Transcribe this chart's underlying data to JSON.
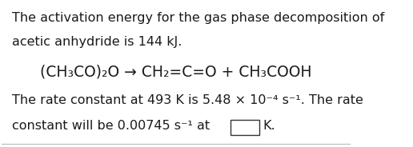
{
  "background_color": "#ffffff",
  "line1": "The activation energy for the gas phase decomposition of",
  "line2": "acetic anhydride is 144 kJ.",
  "equation": "(CH₃CO)₂O → CH₂=C=O + CH₃COOH",
  "line3": "The rate constant at 493 K is 5.48 × 10⁻⁴ s⁻¹. The rate",
  "line4_pre": "constant will be 0.00745 s⁻¹ at",
  "line4_post": "K.",
  "font_family": "DejaVu Sans",
  "font_size_text": 11.5,
  "font_size_eq": 13.5,
  "text_color": "#1a1a1a",
  "figsize": [
    5.16,
    1.84
  ],
  "dpi": 100
}
